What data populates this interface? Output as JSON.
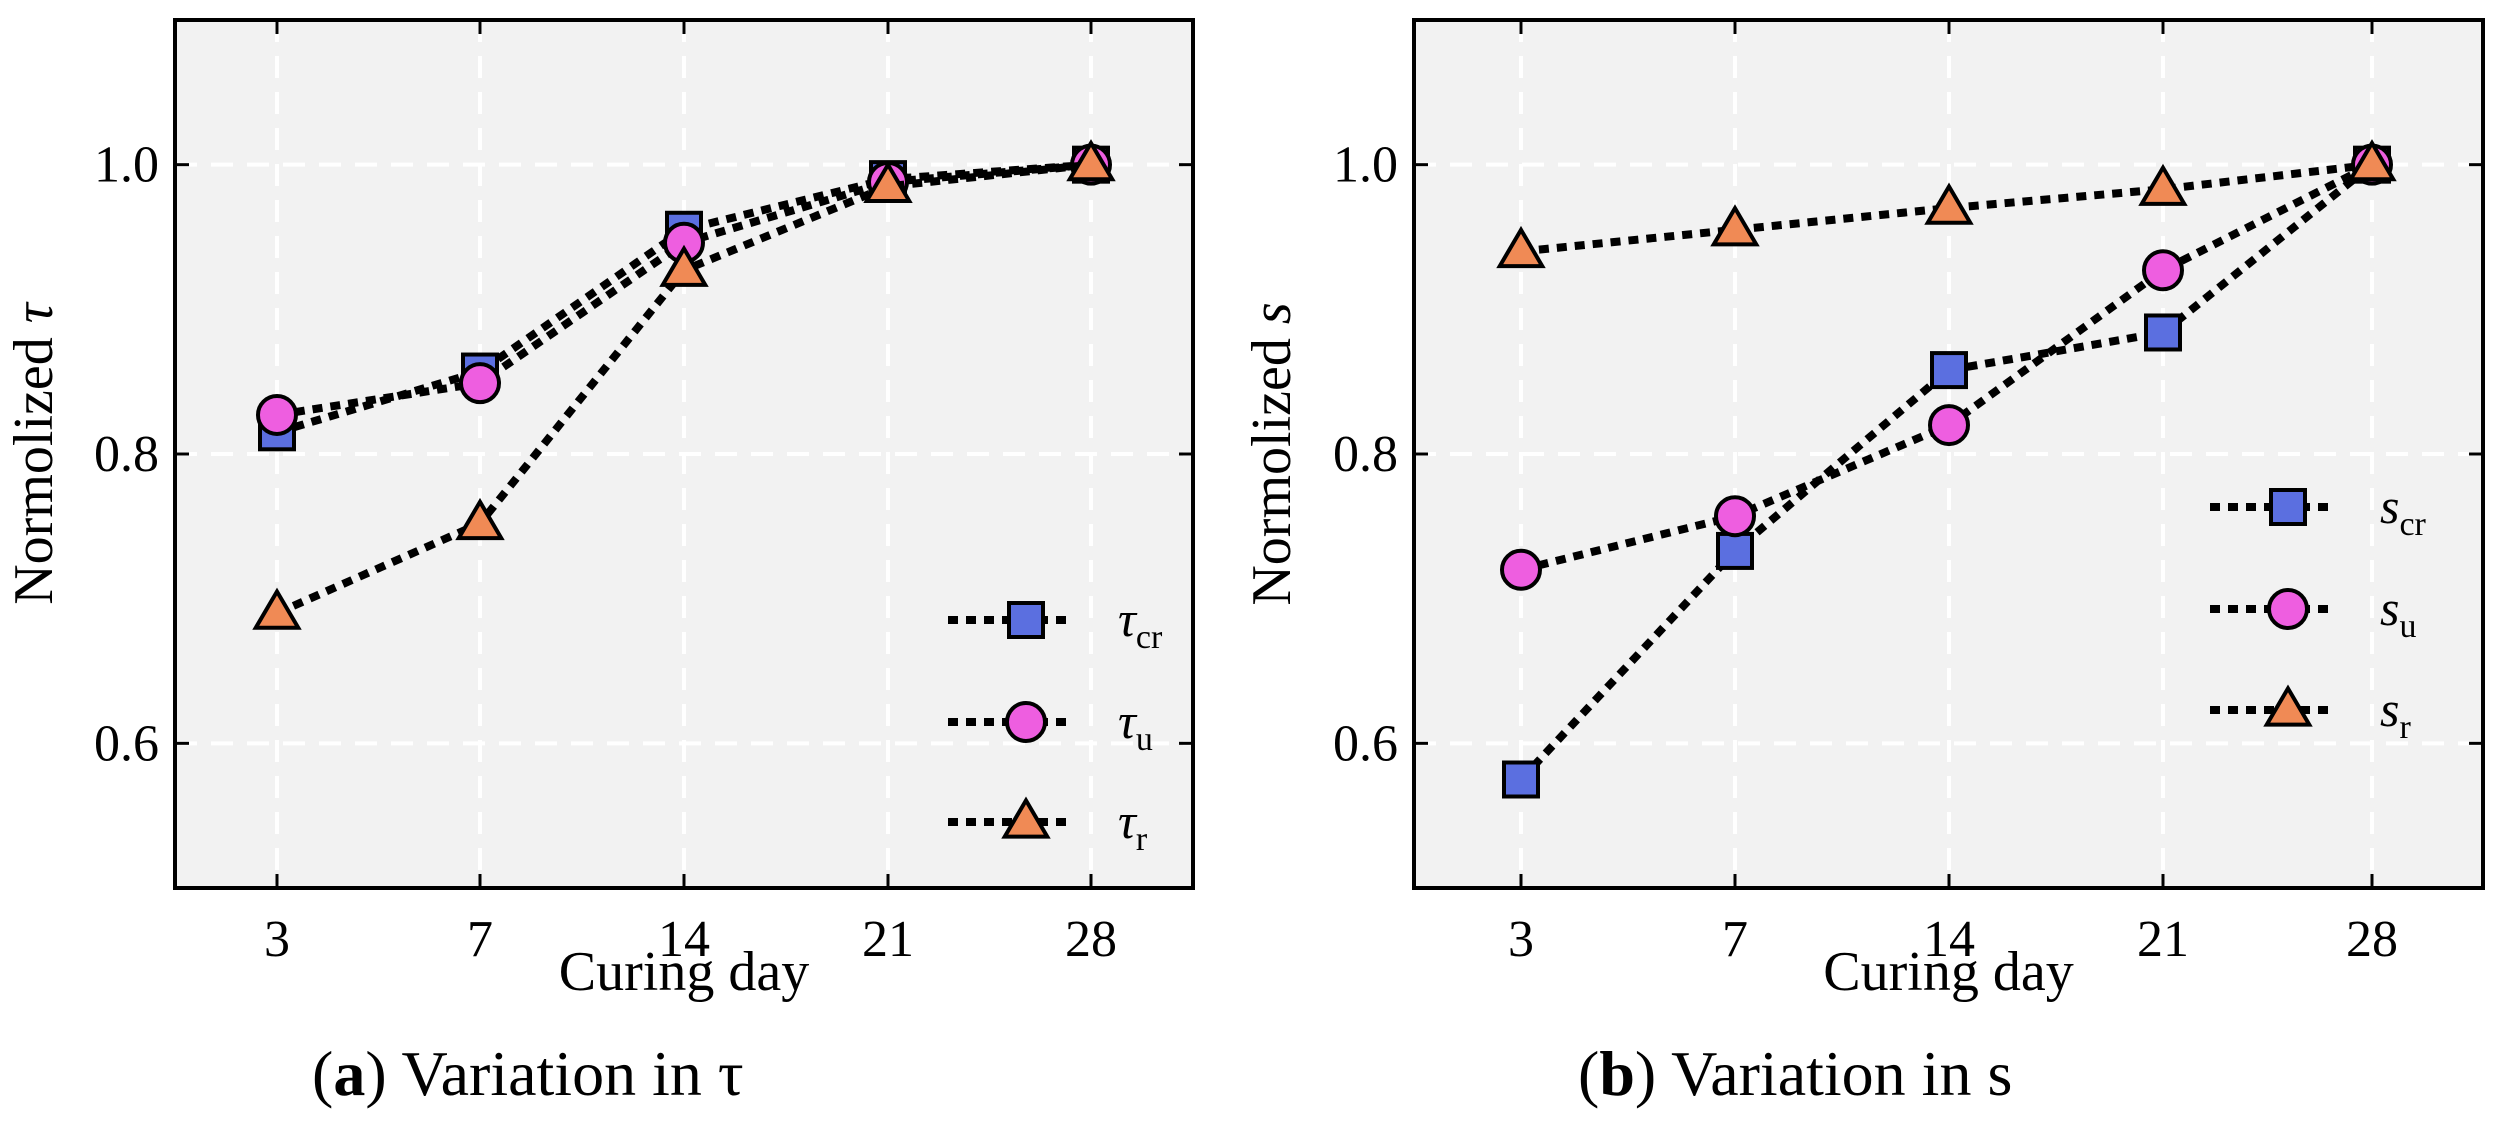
{
  "colors": {
    "panel_bg": "#f2f2f2",
    "grid": "#ffffff",
    "square": "#5b6fe0",
    "circle": "#ee5ee0",
    "triangle": "#f08a55",
    "line": "#000000"
  },
  "icons": {
    "square": "square-marker-icon",
    "circle": "circle-marker-icon",
    "triangle": "triangle-marker-icon"
  },
  "chart_data": [
    {
      "type": "line",
      "caption_letter": "a",
      "caption_text": "Variation in τ",
      "xlabel": "Curing day",
      "ylabel_prefix": "Normolized",
      "ylabel_symbol": "τ",
      "categories": [
        "3",
        "7",
        "14",
        "21",
        "28"
      ],
      "ylim": [
        0.5,
        1.1
      ],
      "yticks": [
        "0.6",
        "0.8",
        "1.0"
      ],
      "ytick_values": [
        0.6,
        0.8,
        1.0
      ],
      "grid": true,
      "legend_position": "bottom-right",
      "series": [
        {
          "name": "τcr",
          "symbol": "τ",
          "sub": "cr",
          "marker": "square",
          "values": [
            0.815,
            0.857,
            0.955,
            0.99,
            1.0
          ]
        },
        {
          "name": "τu",
          "symbol": "τ",
          "sub": "u",
          "marker": "circle",
          "values": [
            0.827,
            0.849,
            0.946,
            0.988,
            1.0
          ]
        },
        {
          "name": "τr",
          "symbol": "τ",
          "sub": "r",
          "marker": "triangle",
          "values": [
            0.69,
            0.752,
            0.927,
            0.985,
            1.0
          ]
        }
      ]
    },
    {
      "type": "line",
      "caption_letter": "b",
      "caption_text": "Variation in s",
      "xlabel": "Curing day",
      "ylabel_prefix": "Normolized",
      "ylabel_symbol": "s",
      "categories": [
        "3",
        "7",
        "14",
        "21",
        "28"
      ],
      "ylim": [
        0.5,
        1.1
      ],
      "yticks": [
        "0.6",
        "0.8",
        "1.0"
      ],
      "ytick_values": [
        0.6,
        0.8,
        1.0
      ],
      "grid": true,
      "legend_position": "center-right",
      "series": [
        {
          "name": "scr",
          "symbol": "s",
          "sub": "cr",
          "marker": "square",
          "values": [
            0.575,
            0.733,
            0.858,
            0.884,
            1.0
          ]
        },
        {
          "name": "su",
          "symbol": "s",
          "sub": "u",
          "marker": "circle",
          "values": [
            0.72,
            0.757,
            0.82,
            0.927,
            1.0
          ]
        },
        {
          "name": "sr",
          "symbol": "s",
          "sub": "r",
          "marker": "triangle",
          "values": [
            0.94,
            0.955,
            0.97,
            0.983,
            1.0
          ]
        }
      ]
    }
  ]
}
